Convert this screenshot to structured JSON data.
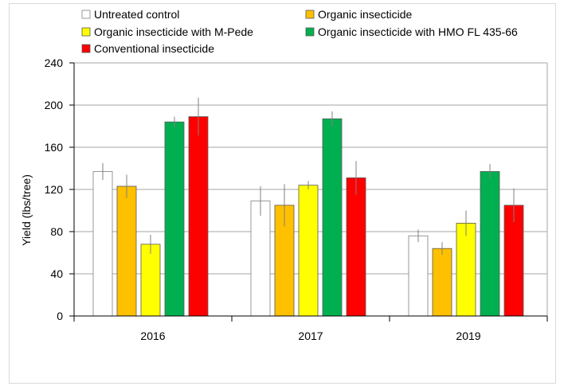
{
  "chart_data": {
    "type": "bar",
    "title": "",
    "xlabel": "",
    "ylabel": "Yield (lbs/tree)",
    "ylim": [
      0,
      240
    ],
    "yticks": [
      "0",
      "40",
      "80",
      "120",
      "160",
      "200",
      "240"
    ],
    "ytick_values": [
      0,
      40,
      80,
      120,
      160,
      200,
      240
    ],
    "grid": true,
    "legend_position": "top",
    "categories": [
      "2016",
      "2017",
      "2019"
    ],
    "series": [
      {
        "name": "Untreated control",
        "color": "#ffffff",
        "values": [
          137,
          109,
          76
        ],
        "errors": [
          8,
          14,
          6
        ]
      },
      {
        "name": "Organic insecticide",
        "color": "#ffc000",
        "values": [
          123,
          105,
          64
        ],
        "errors": [
          11,
          20,
          6
        ]
      },
      {
        "name": "Organic insecticide with M-Pede",
        "color": "#ffff00",
        "values": [
          68,
          124,
          88
        ],
        "errors": [
          9,
          4,
          12
        ]
      },
      {
        "name": "Organic insecticide with HMO FL 435-66",
        "color": "#00b050",
        "values": [
          184,
          187,
          137
        ],
        "errors": [
          5,
          7,
          7
        ]
      },
      {
        "name": "Conventional insecticide",
        "color": "#ff0000",
        "values": [
          189,
          131,
          105
        ],
        "errors": [
          18,
          16,
          16
        ]
      }
    ]
  }
}
